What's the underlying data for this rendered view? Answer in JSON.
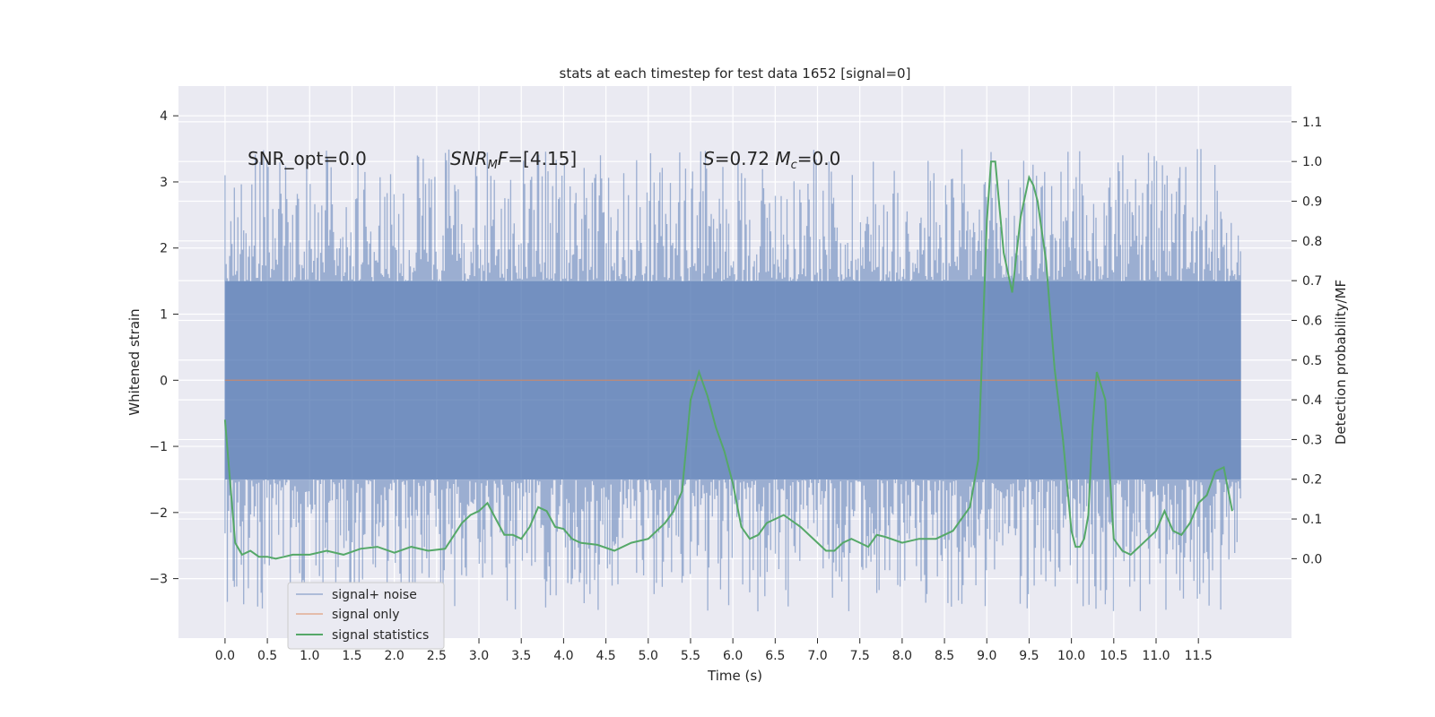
{
  "chart_data": {
    "type": "line",
    "title": "stats at each timestep for test data 1652 [signal=0]",
    "xlabel": "Time (s)",
    "ylabel": "Whitened strain",
    "y2label": "Detection probability/MF",
    "xlim": [
      -0.55,
      12.6
    ],
    "ylim": [
      -3.9,
      4.45
    ],
    "y2lim": [
      -0.2,
      1.19
    ],
    "grid": true,
    "legend_position": "lower-left",
    "x_ticks": [
      "0.0",
      "0.5",
      "1.0",
      "1.5",
      "2.0",
      "2.5",
      "3.0",
      "3.5",
      "4.0",
      "4.5",
      "5.0",
      "5.5",
      "6.0",
      "6.5",
      "7.0",
      "7.5",
      "8.0",
      "8.5",
      "9.0",
      "9.5",
      "10.0",
      "10.5",
      "11.0",
      "11.5"
    ],
    "y_ticks": [
      "−3",
      "−2",
      "−1",
      "0",
      "1",
      "2",
      "3",
      "4"
    ],
    "y2_ticks": [
      "0.0",
      "0.1",
      "0.2",
      "0.3",
      "0.4",
      "0.5",
      "0.6",
      "0.7",
      "0.8",
      "0.9",
      "1.0",
      "1.1"
    ],
    "annotations": {
      "snr_opt": "SNR_opt=0.0",
      "snr_mf": "SNRMF=[4.15]",
      "s_mc": "S=0.72   Mc=0.0"
    },
    "series": [
      {
        "name": "signal+ noise",
        "axis": "left",
        "color": "#4c72b0",
        "x_range": [
          0.0,
          12.0
        ],
        "noise": {
          "core_low": -1.5,
          "core_high": 1.5,
          "upper_extremes": [
            2.0,
            3.5
          ],
          "lower_extremes": [
            -1.9,
            -3.5
          ]
        }
      },
      {
        "name": "signal only",
        "axis": "left",
        "color": "#dd8452",
        "x": [
          0.0,
          12.0
        ],
        "y": [
          0.0,
          0.0
        ]
      },
      {
        "name": "signal statistics",
        "axis": "right",
        "color": "#55a868",
        "x": [
          0.0,
          0.05,
          0.12,
          0.2,
          0.3,
          0.4,
          0.5,
          0.6,
          0.7,
          0.8,
          0.9,
          1.0,
          1.2,
          1.4,
          1.6,
          1.8,
          2.0,
          2.2,
          2.4,
          2.6,
          2.8,
          2.9,
          3.0,
          3.1,
          3.2,
          3.3,
          3.4,
          3.5,
          3.6,
          3.7,
          3.8,
          3.9,
          4.0,
          4.1,
          4.2,
          4.4,
          4.6,
          4.8,
          5.0,
          5.1,
          5.2,
          5.3,
          5.4,
          5.5,
          5.6,
          5.7,
          5.8,
          5.9,
          6.0,
          6.1,
          6.2,
          6.3,
          6.4,
          6.5,
          6.6,
          6.8,
          7.0,
          7.1,
          7.2,
          7.3,
          7.4,
          7.5,
          7.6,
          7.7,
          7.8,
          8.0,
          8.2,
          8.4,
          8.6,
          8.8,
          8.9,
          9.0,
          9.05,
          9.1,
          9.2,
          9.3,
          9.4,
          9.5,
          9.55,
          9.6,
          9.7,
          9.8,
          9.9,
          10.0,
          10.05,
          10.1,
          10.15,
          10.2,
          10.25,
          10.3,
          10.4,
          10.5,
          10.6,
          10.7,
          10.8,
          10.9,
          11.0,
          11.1,
          11.2,
          11.3,
          11.4,
          11.5,
          11.6,
          11.7,
          11.8,
          11.9
        ],
        "y": [
          0.35,
          0.22,
          0.04,
          0.01,
          0.02,
          0.005,
          0.005,
          0.0,
          0.005,
          0.01,
          0.01,
          0.01,
          0.02,
          0.01,
          0.025,
          0.03,
          0.015,
          0.03,
          0.02,
          0.025,
          0.09,
          0.11,
          0.12,
          0.14,
          0.1,
          0.06,
          0.06,
          0.05,
          0.08,
          0.13,
          0.12,
          0.08,
          0.075,
          0.05,
          0.04,
          0.035,
          0.02,
          0.04,
          0.05,
          0.07,
          0.09,
          0.12,
          0.17,
          0.4,
          0.47,
          0.41,
          0.33,
          0.27,
          0.19,
          0.08,
          0.05,
          0.06,
          0.09,
          0.1,
          0.11,
          0.08,
          0.04,
          0.02,
          0.02,
          0.04,
          0.05,
          0.04,
          0.03,
          0.06,
          0.055,
          0.04,
          0.05,
          0.05,
          0.07,
          0.13,
          0.25,
          0.85,
          1.0,
          1.0,
          0.77,
          0.67,
          0.86,
          0.96,
          0.94,
          0.9,
          0.75,
          0.48,
          0.3,
          0.07,
          0.03,
          0.03,
          0.05,
          0.11,
          0.33,
          0.47,
          0.4,
          0.05,
          0.02,
          0.01,
          0.03,
          0.05,
          0.07,
          0.12,
          0.07,
          0.06,
          0.09,
          0.14,
          0.16,
          0.22,
          0.23,
          0.12
        ]
      }
    ]
  }
}
